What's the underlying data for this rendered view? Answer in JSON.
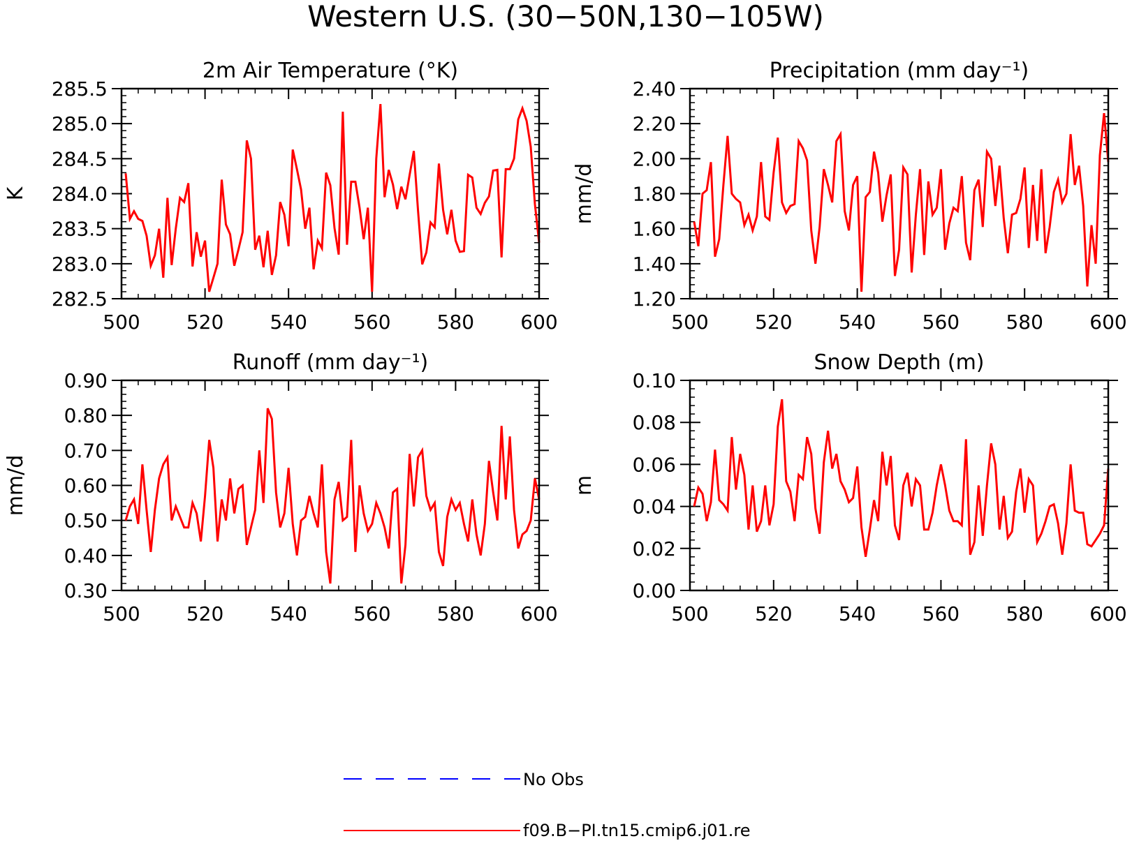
{
  "figure": {
    "title": "Western U.S. (30−50N,130−105W)",
    "legend": [
      {
        "label": "No Obs",
        "color": "#0000ff",
        "style": "dashed"
      },
      {
        "label": "f09.B−PI.tn15.cmip6.j01.re",
        "color": "#ff0000",
        "style": "solid"
      }
    ]
  },
  "chart_data": [
    {
      "type": "line",
      "title": "2m Air Temperature (°K)",
      "ylabel": "K",
      "xlabel": "",
      "xlim": [
        500,
        600
      ],
      "ylim": [
        282.5,
        285.5
      ],
      "xticks": [
        500,
        520,
        540,
        560,
        580,
        600
      ],
      "xtick_labels": [
        "500",
        "520",
        "540",
        "560",
        "580",
        "600"
      ],
      "yticks": [
        282.5,
        283.0,
        283.5,
        284.0,
        284.5,
        285.0,
        285.5
      ],
      "ytick_labels": [
        "282.5",
        "283.0",
        "283.5",
        "284.0",
        "284.5",
        "285.0",
        "285.5"
      ],
      "grid": false,
      "series": [
        {
          "name": "f09.B−PI.tn15.cmip6.j01.re",
          "color": "#ff0000",
          "x_start": 501,
          "x_step": 1,
          "values": [
            284.29,
            283.64,
            283.75,
            283.64,
            283.61,
            283.4,
            282.97,
            283.12,
            283.5,
            282.8,
            283.94,
            282.98,
            283.5,
            283.94,
            283.88,
            284.15,
            282.96,
            283.45,
            283.1,
            283.33,
            282.6,
            282.8,
            283.0,
            284.2,
            283.56,
            283.42,
            282.97,
            283.2,
            283.45,
            284.76,
            284.5,
            283.2,
            283.4,
            282.95,
            283.47,
            282.84,
            283.12,
            283.88,
            283.7,
            283.25,
            284.63,
            284.35,
            284.06,
            283.5,
            283.8,
            282.92,
            283.33,
            283.22,
            284.3,
            284.12,
            283.51,
            283.13,
            285.17,
            283.27,
            284.17,
            284.17,
            283.8,
            283.35,
            283.8,
            282.6,
            284.5,
            285.28,
            283.95,
            284.34,
            284.13,
            283.78,
            284.1,
            283.92,
            284.27,
            284.61,
            283.76,
            282.99,
            283.16,
            283.59,
            283.52,
            284.43,
            283.77,
            283.42,
            283.77,
            283.33,
            283.17,
            283.18,
            284.27,
            284.23,
            283.8,
            283.71,
            283.87,
            283.96,
            284.33,
            284.34,
            283.09,
            284.35,
            284.35,
            284.5,
            285.06,
            285.22,
            285.04,
            284.67,
            283.85,
            283.3
          ]
        }
      ]
    },
    {
      "type": "line",
      "title": "Precipitation (mm day⁻¹)",
      "ylabel": "mm/d",
      "xlabel": "",
      "xlim": [
        500,
        600
      ],
      "ylim": [
        1.2,
        2.4
      ],
      "xticks": [
        500,
        520,
        540,
        560,
        580,
        600
      ],
      "xtick_labels": [
        "500",
        "520",
        "540",
        "560",
        "580",
        "600"
      ],
      "yticks": [
        1.2,
        1.4,
        1.6,
        1.8,
        2.0,
        2.2,
        2.4
      ],
      "ytick_labels": [
        "1.20",
        "1.40",
        "1.60",
        "1.80",
        "2.00",
        "2.20",
        "2.40"
      ],
      "grid": false,
      "series": [
        {
          "name": "f09.B−PI.tn15.cmip6.j01.re",
          "color": "#ff0000",
          "x_start": 501,
          "x_step": 1,
          "values": [
            1.64,
            1.5,
            1.8,
            1.82,
            1.98,
            1.44,
            1.54,
            1.85,
            2.13,
            1.8,
            1.77,
            1.75,
            1.62,
            1.68,
            1.59,
            1.67,
            1.98,
            1.67,
            1.65,
            1.92,
            2.12,
            1.75,
            1.69,
            1.73,
            1.74,
            2.1,
            2.06,
            1.99,
            1.59,
            1.4,
            1.61,
            1.94,
            1.85,
            1.75,
            2.1,
            2.14,
            1.7,
            1.59,
            1.85,
            1.9,
            1.24,
            1.78,
            1.81,
            2.04,
            1.92,
            1.64,
            1.79,
            1.91,
            1.33,
            1.48,
            1.95,
            1.91,
            1.35,
            1.68,
            1.94,
            1.45,
            1.87,
            1.68,
            1.72,
            1.94,
            1.48,
            1.63,
            1.72,
            1.7,
            1.9,
            1.52,
            1.42,
            1.82,
            1.88,
            1.61,
            2.04,
            2.0,
            1.73,
            1.96,
            1.66,
            1.46,
            1.68,
            1.69,
            1.77,
            1.95,
            1.49,
            1.85,
            1.53,
            1.94,
            1.46,
            1.61,
            1.81,
            1.88,
            1.75,
            1.8,
            2.14,
            1.85,
            1.96,
            1.73,
            1.27,
            1.62,
            1.4,
            2.02,
            2.26,
            1.98
          ]
        }
      ]
    },
    {
      "type": "line",
      "title": "Runoff (mm day⁻¹)",
      "ylabel": "mm/d",
      "xlabel": "",
      "xlim": [
        500,
        600
      ],
      "ylim": [
        0.3,
        0.9
      ],
      "xticks": [
        500,
        520,
        540,
        560,
        580,
        600
      ],
      "xtick_labels": [
        "500",
        "520",
        "540",
        "560",
        "580",
        "600"
      ],
      "yticks": [
        0.3,
        0.4,
        0.5,
        0.6,
        0.7,
        0.8,
        0.9
      ],
      "ytick_labels": [
        "0.30",
        "0.40",
        "0.50",
        "0.60",
        "0.70",
        "0.80",
        "0.90"
      ],
      "grid": false,
      "series": [
        {
          "name": "f09.B−PI.tn15.cmip6.j01.re",
          "color": "#ff0000",
          "x_start": 501,
          "x_step": 1,
          "values": [
            0.5,
            0.54,
            0.56,
            0.49,
            0.66,
            0.53,
            0.41,
            0.53,
            0.62,
            0.66,
            0.68,
            0.5,
            0.54,
            0.51,
            0.48,
            0.48,
            0.55,
            0.52,
            0.44,
            0.57,
            0.73,
            0.65,
            0.44,
            0.56,
            0.5,
            0.62,
            0.52,
            0.59,
            0.6,
            0.43,
            0.48,
            0.53,
            0.7,
            0.55,
            0.82,
            0.79,
            0.58,
            0.48,
            0.52,
            0.65,
            0.49,
            0.4,
            0.5,
            0.51,
            0.57,
            0.52,
            0.48,
            0.66,
            0.41,
            0.32,
            0.56,
            0.61,
            0.5,
            0.51,
            0.73,
            0.41,
            0.6,
            0.52,
            0.47,
            0.49,
            0.55,
            0.52,
            0.48,
            0.42,
            0.58,
            0.59,
            0.32,
            0.43,
            0.69,
            0.54,
            0.68,
            0.7,
            0.57,
            0.53,
            0.55,
            0.41,
            0.37,
            0.51,
            0.56,
            0.53,
            0.55,
            0.49,
            0.44,
            0.56,
            0.46,
            0.4,
            0.49,
            0.67,
            0.58,
            0.5,
            0.77,
            0.56,
            0.74,
            0.53,
            0.42,
            0.46,
            0.47,
            0.5,
            0.62,
            0.56
          ]
        }
      ]
    },
    {
      "type": "line",
      "title": "Snow Depth (m)",
      "ylabel": "m",
      "xlabel": "",
      "xlim": [
        500,
        600
      ],
      "ylim": [
        0.0,
        0.1
      ],
      "xticks": [
        500,
        520,
        540,
        560,
        580,
        600
      ],
      "xtick_labels": [
        "500",
        "520",
        "540",
        "560",
        "580",
        "600"
      ],
      "yticks": [
        0.0,
        0.02,
        0.04,
        0.06,
        0.08,
        0.1
      ],
      "ytick_labels": [
        "0.00",
        "0.02",
        "0.04",
        "0.06",
        "0.08",
        "0.10"
      ],
      "grid": false,
      "series": [
        {
          "name": "f09.B−PI.tn15.cmip6.j01.re",
          "color": "#ff0000",
          "x_start": 501,
          "x_step": 1,
          "values": [
            0.04,
            0.049,
            0.046,
            0.033,
            0.042,
            0.067,
            0.043,
            0.041,
            0.038,
            0.073,
            0.048,
            0.065,
            0.055,
            0.029,
            0.05,
            0.028,
            0.033,
            0.05,
            0.031,
            0.041,
            0.078,
            0.091,
            0.052,
            0.047,
            0.033,
            0.055,
            0.053,
            0.073,
            0.065,
            0.039,
            0.027,
            0.061,
            0.076,
            0.058,
            0.065,
            0.052,
            0.048,
            0.042,
            0.044,
            0.059,
            0.03,
            0.016,
            0.029,
            0.043,
            0.033,
            0.066,
            0.05,
            0.064,
            0.031,
            0.024,
            0.05,
            0.056,
            0.04,
            0.053,
            0.05,
            0.029,
            0.029,
            0.037,
            0.05,
            0.06,
            0.05,
            0.038,
            0.033,
            0.033,
            0.031,
            0.072,
            0.017,
            0.023,
            0.05,
            0.026,
            0.05,
            0.07,
            0.06,
            0.029,
            0.045,
            0.025,
            0.028,
            0.047,
            0.058,
            0.037,
            0.053,
            0.05,
            0.023,
            0.027,
            0.033,
            0.04,
            0.041,
            0.032,
            0.017,
            0.032,
            0.06,
            0.038,
            0.037,
            0.037,
            0.022,
            0.021,
            0.024,
            0.027,
            0.031,
            0.058
          ]
        }
      ]
    }
  ]
}
